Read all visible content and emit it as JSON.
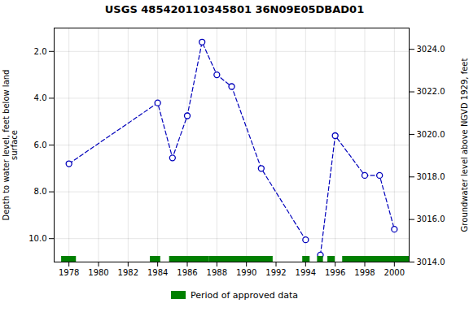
{
  "chart_data": {
    "type": "line",
    "title": "USGS 485420110345801 36N09E05DBAD01",
    "ylabel": "Depth to water level, feet below land\nsurface",
    "y2label": "Groundwater level above NGVD 1929, feet",
    "xlim": [
      1977,
      2001
    ],
    "xticks": [
      1978,
      1980,
      1982,
      1984,
      1986,
      1988,
      1990,
      1992,
      1994,
      1996,
      1998,
      2000
    ],
    "ylim": [
      11.0,
      1.0
    ],
    "yticks": [
      {
        "value": 2.0,
        "label": "2.0"
      },
      {
        "value": 4.0,
        "label": "4.0"
      },
      {
        "value": 6.0,
        "label": "6.0"
      },
      {
        "value": 8.0,
        "label": "8.0"
      },
      {
        "value": 10.0,
        "label": "10.0"
      }
    ],
    "y2lim": [
      3014.0,
      3025.0
    ],
    "y2ticks": [
      {
        "value": 3014.0,
        "label": "3014.0"
      },
      {
        "value": 3016.0,
        "label": "3016.0"
      },
      {
        "value": 3018.0,
        "label": "3018.0"
      },
      {
        "value": 3020.0,
        "label": "3020.0"
      },
      {
        "value": 3022.0,
        "label": "3022.0"
      },
      {
        "value": 3024.0,
        "label": "3024.0"
      }
    ],
    "grid": true,
    "legend": "bottom",
    "series": [
      {
        "type": "line",
        "x": [
          1978,
          1984,
          1985,
          1986,
          1987,
          1988,
          1989,
          1991,
          1994
        ],
        "values": [
          6.8,
          4.2,
          6.55,
          4.75,
          1.6,
          3.0,
          3.5,
          7.0,
          10.05
        ],
        "color": "#0000bb",
        "marker": "circle",
        "line_style": "dashed"
      },
      {
        "type": "line",
        "x": [
          1995,
          1996,
          1998,
          1999,
          2000
        ],
        "values": [
          10.7,
          5.6,
          7.3,
          7.3,
          9.6
        ],
        "color": "#0000bb",
        "marker": "circle",
        "line_style": "dashed"
      },
      {
        "type": "span",
        "name": "Period of approved data",
        "color": "#008000",
        "spans": [
          [
            1977.5,
            1978.5
          ],
          [
            1983.5,
            1984.2
          ],
          [
            1984.8,
            1987.5
          ],
          [
            1987.5,
            1991.8
          ],
          [
            1993.8,
            1994.3
          ],
          [
            1994.8,
            1995.2
          ],
          [
            1995.5,
            1996.0
          ],
          [
            1996.5,
            2001.0
          ]
        ]
      }
    ]
  }
}
